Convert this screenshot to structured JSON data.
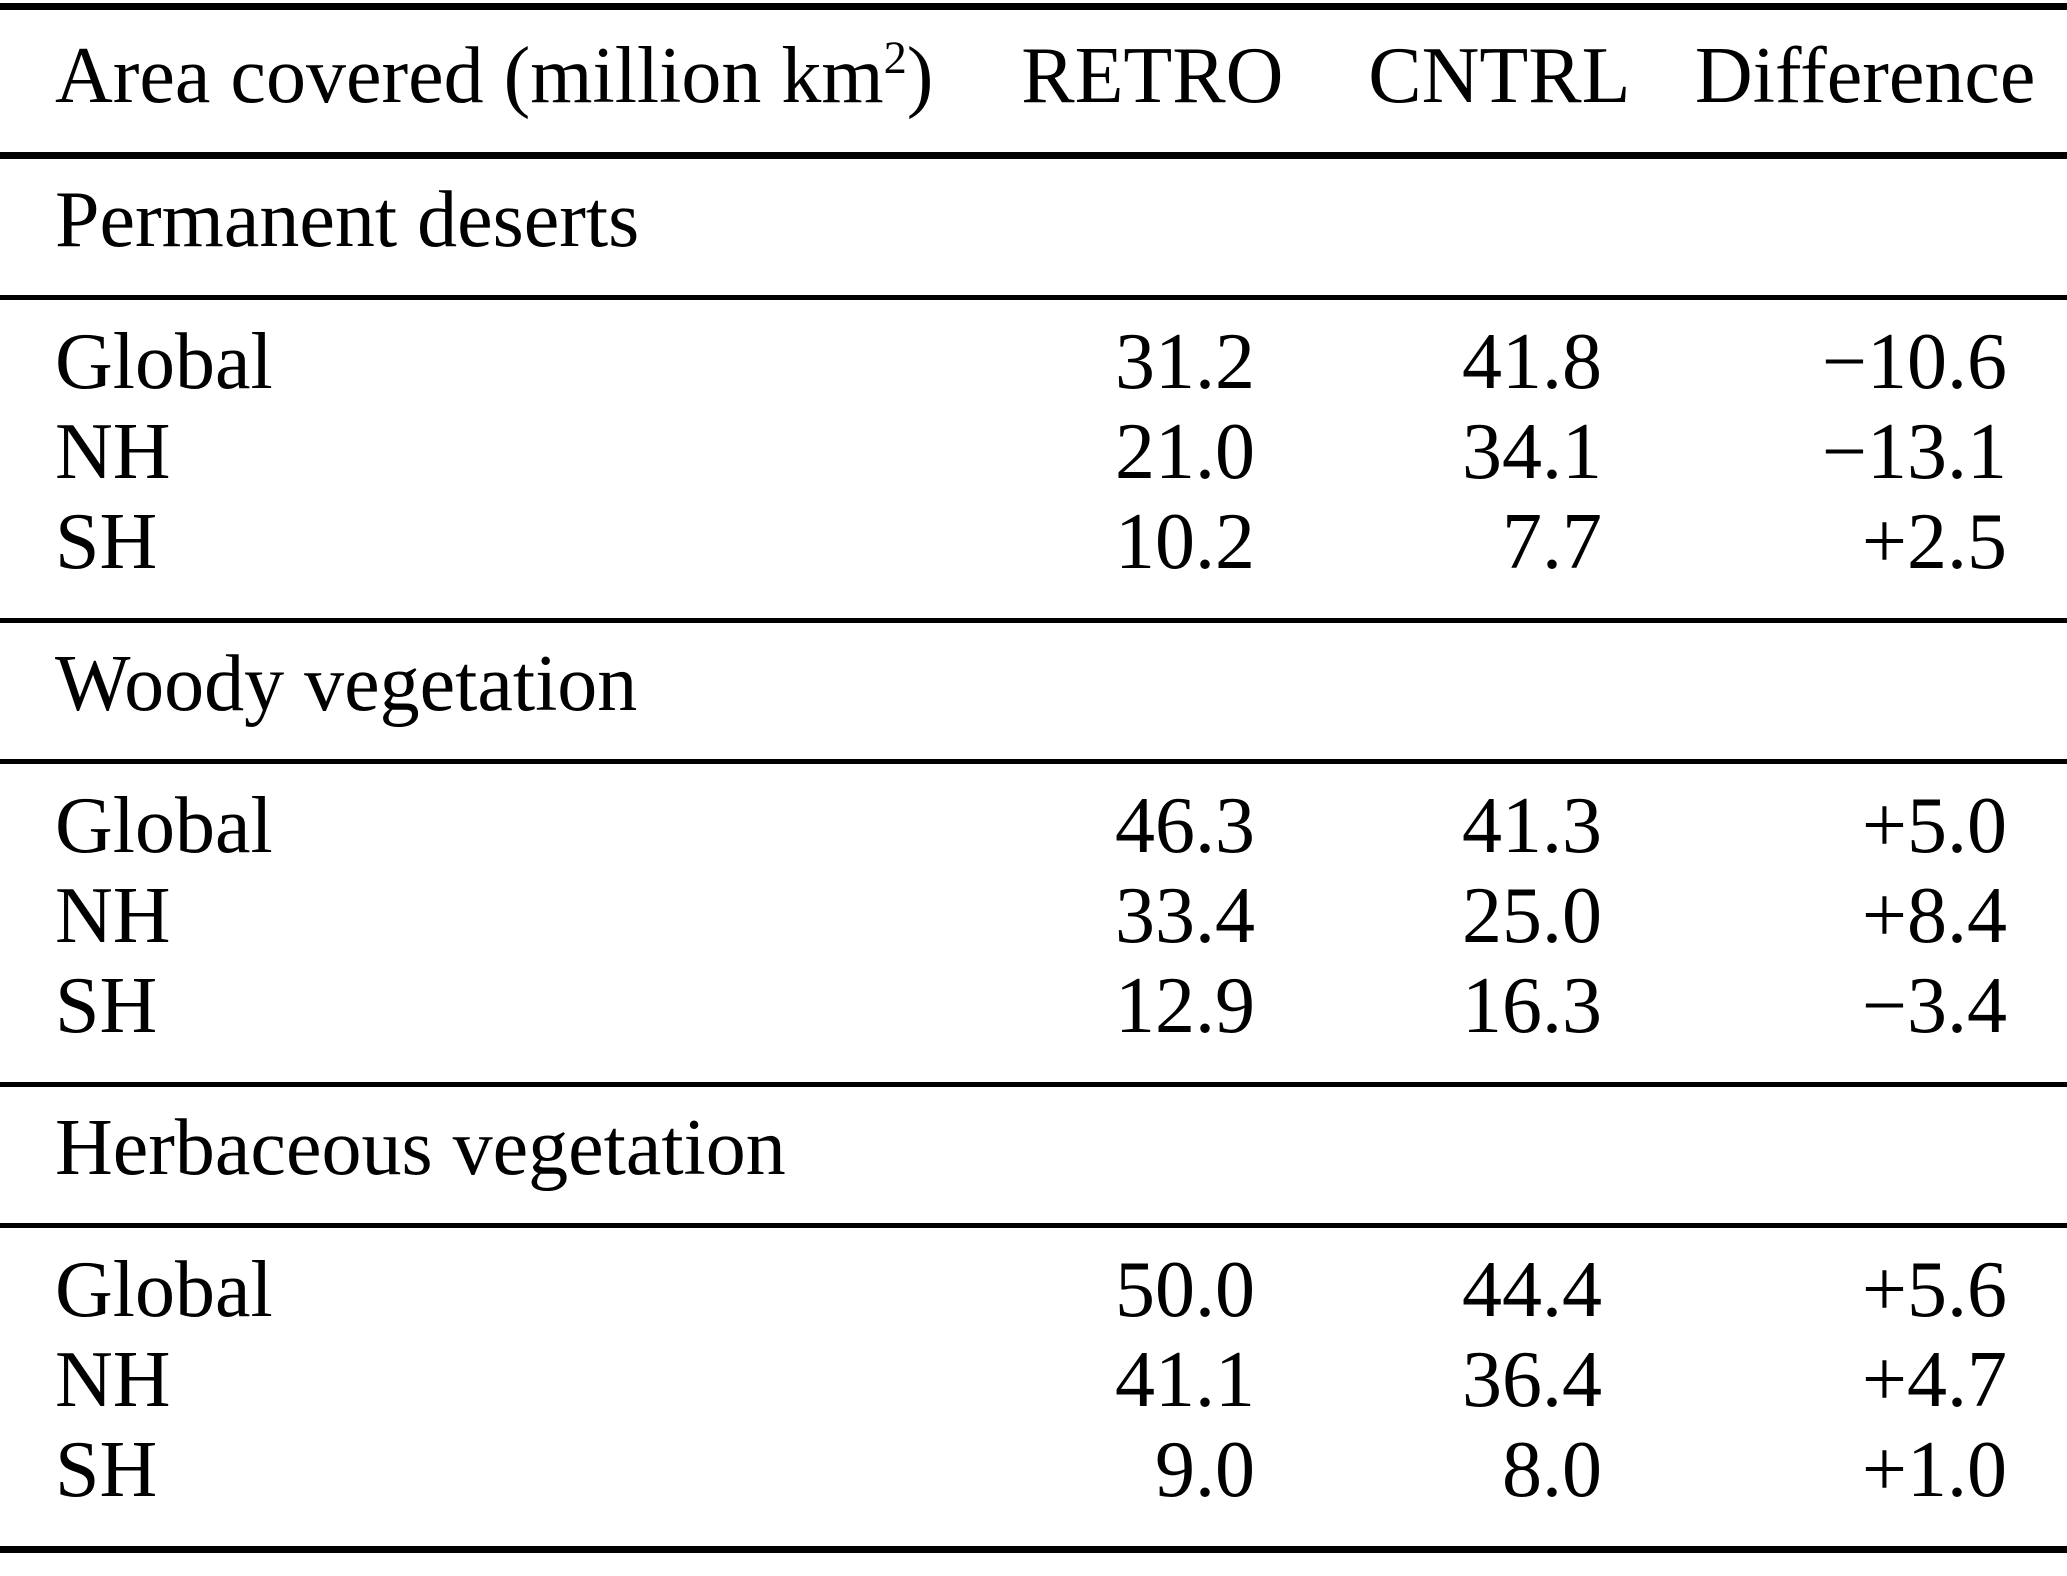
{
  "page": {
    "background_color": "#ffffff",
    "text_color": "#000000",
    "rule_color": "#000000"
  },
  "table": {
    "header": {
      "area_label": "Area covered (million km",
      "area_sup": "2",
      "area_close": ")",
      "retro": "RETRO",
      "cntrl": "CNTRL",
      "difference": "Difference"
    },
    "sections": [
      {
        "title": "Permanent deserts",
        "rows": [
          {
            "label": "Global",
            "retro": "31.2",
            "cntrl": "41.8",
            "difference": "−10.6"
          },
          {
            "label": "NH",
            "retro": "21.0",
            "cntrl": "34.1",
            "difference": "−13.1"
          },
          {
            "label": "SH",
            "retro": "10.2",
            "cntrl": "7.7",
            "difference": "+2.5"
          }
        ]
      },
      {
        "title": "Woody vegetation",
        "rows": [
          {
            "label": "Global",
            "retro": "46.3",
            "cntrl": "41.3",
            "difference": "+5.0"
          },
          {
            "label": "NH",
            "retro": "33.4",
            "cntrl": "25.0",
            "difference": "+8.4"
          },
          {
            "label": "SH",
            "retro": "12.9",
            "cntrl": "16.3",
            "difference": "−3.4"
          }
        ]
      },
      {
        "title": "Herbaceous vegetation",
        "rows": [
          {
            "label": "Global",
            "retro": "50.0",
            "cntrl": "44.4",
            "difference": "+5.6"
          },
          {
            "label": "NH",
            "retro": "41.1",
            "cntrl": "36.4",
            "difference": "+4.7"
          },
          {
            "label": "SH",
            "retro": "9.0",
            "cntrl": "8.0",
            "difference": "+1.0"
          }
        ]
      }
    ]
  }
}
